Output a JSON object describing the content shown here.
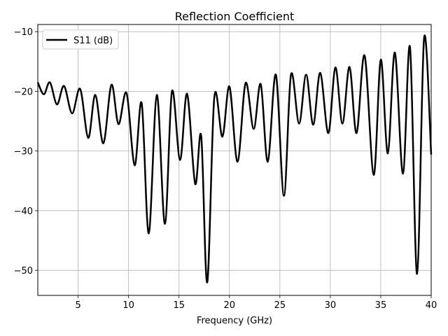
{
  "chart_data": {
    "type": "line",
    "title": "Reflection Coefficient",
    "xlabel": "Frequency (GHz)",
    "ylabel": "",
    "xlim": [
      1,
      40
    ],
    "ylim": [
      -54.2,
      -8.8
    ],
    "xticks": [
      5,
      10,
      15,
      20,
      25,
      30,
      35,
      40
    ],
    "yticks": [
      -10,
      -20,
      -30,
      -40,
      -50
    ],
    "grid": true,
    "legend": "top-left",
    "series": [
      {
        "name": "S11 (dB)",
        "color": "#000000",
        "points": [
          [
            1.0,
            -18.5
          ],
          [
            1.6,
            -20.5
          ],
          [
            2.2,
            -18.5
          ],
          [
            2.9,
            -22.2
          ],
          [
            3.6,
            -19.1
          ],
          [
            4.4,
            -23.7
          ],
          [
            5.2,
            -19.6
          ],
          [
            6.0,
            -27.8
          ],
          [
            6.7,
            -20.6
          ],
          [
            7.5,
            -28.7
          ],
          [
            8.3,
            -18.9
          ],
          [
            9.0,
            -25.5
          ],
          [
            9.8,
            -20.3
          ],
          [
            10.6,
            -32.4
          ],
          [
            11.3,
            -22.0
          ],
          [
            12.0,
            -43.8
          ],
          [
            12.8,
            -20.6
          ],
          [
            13.6,
            -42.2
          ],
          [
            14.3,
            -20.0
          ],
          [
            15.1,
            -31.5
          ],
          [
            15.8,
            -20.4
          ],
          [
            16.6,
            -35.5
          ],
          [
            17.2,
            -27.5
          ],
          [
            17.8,
            -52.0
          ],
          [
            18.5,
            -21.0
          ],
          [
            19.3,
            -27.6
          ],
          [
            20.0,
            -19.2
          ],
          [
            20.8,
            -31.8
          ],
          [
            21.6,
            -18.6
          ],
          [
            22.4,
            -26.3
          ],
          [
            23.1,
            -18.8
          ],
          [
            23.8,
            -31.8
          ],
          [
            24.6,
            -17.2
          ],
          [
            25.4,
            -37.5
          ],
          [
            26.1,
            -17.2
          ],
          [
            26.9,
            -25.4
          ],
          [
            27.6,
            -17.2
          ],
          [
            28.3,
            -25.6
          ],
          [
            29.0,
            -16.9
          ],
          [
            29.8,
            -27.0
          ],
          [
            30.5,
            -16.0
          ],
          [
            31.2,
            -25.4
          ],
          [
            31.9,
            -15.9
          ],
          [
            32.6,
            -27.0
          ],
          [
            33.4,
            -14.0
          ],
          [
            34.3,
            -34.0
          ],
          [
            35.0,
            -14.7
          ],
          [
            35.7,
            -30.4
          ],
          [
            36.4,
            -13.5
          ],
          [
            37.2,
            -33.8
          ],
          [
            37.9,
            -12.6
          ],
          [
            38.6,
            -50.6
          ],
          [
            39.3,
            -11.0
          ],
          [
            40.0,
            -30.6
          ]
        ]
      }
    ]
  }
}
